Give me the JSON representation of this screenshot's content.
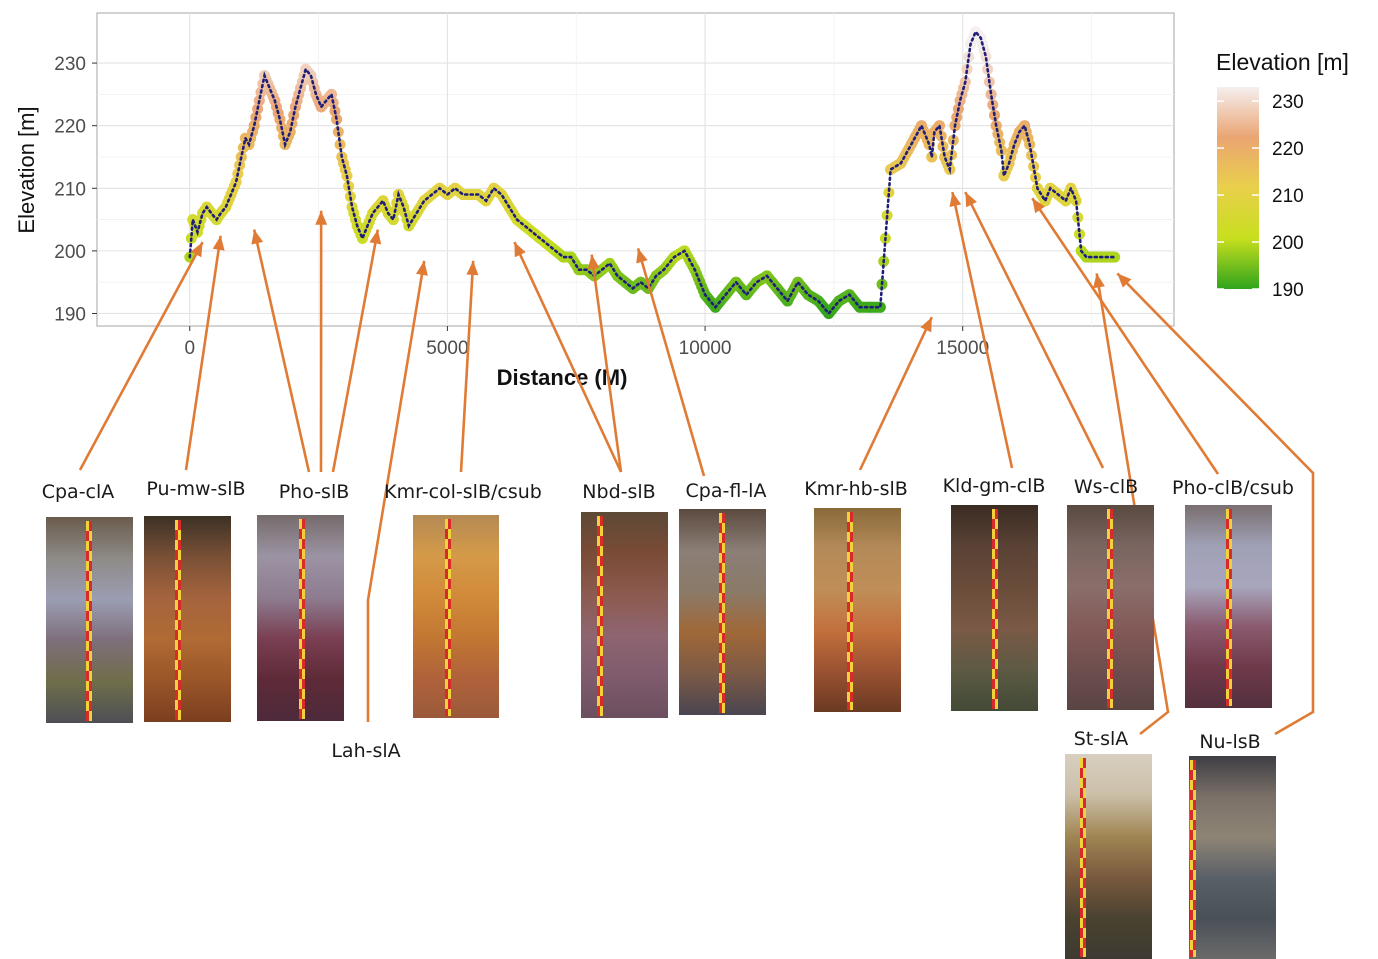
{
  "chart_data": {
    "type": "line",
    "xlabel": "Distance (M)",
    "ylabel": "Elevation [m]",
    "xlim": [
      -1800,
      19100
    ],
    "ylim": [
      188,
      238
    ],
    "x_ticks": [
      0,
      5000,
      10000,
      15000
    ],
    "y_ticks": [
      190,
      200,
      210,
      220,
      230
    ],
    "grid": true,
    "line_style": "dotted",
    "line_color": "#1f1f7a",
    "legend": {
      "title": "Elevation [m]",
      "placement": "right",
      "labels": [
        230,
        220,
        210,
        200,
        190
      ],
      "range": [
        190,
        233
      ],
      "stops": [
        "#2fa41c",
        "#c7df1e",
        "#e9d04a",
        "#eaa572",
        "#f5efef"
      ]
    },
    "series": [
      {
        "x": [
          0,
          60,
          150,
          250,
          330,
          420,
          520,
          600,
          700,
          800,
          900,
          1000,
          1080,
          1150,
          1250,
          1350,
          1450,
          1550,
          1650,
          1750,
          1850,
          1950,
          2050,
          2150,
          2250,
          2350,
          2450,
          2550,
          2650,
          2750,
          2850,
          2950,
          3050,
          3150,
          3250,
          3350,
          3450,
          3550,
          3650,
          3750,
          3850,
          3950,
          4050,
          4150,
          4250,
          4400,
          4550,
          4700,
          4850,
          5000,
          5150,
          5300,
          5450,
          5600,
          5750,
          5900,
          6050,
          6200,
          6350,
          6500,
          6650,
          6800,
          6950,
          7100,
          7250,
          7400,
          7550,
          7700,
          7850,
          8000,
          8150,
          8300,
          8450,
          8600,
          8750,
          8900,
          9050,
          9200,
          9400,
          9600,
          9800,
          10000,
          10200,
          10400,
          10600,
          10800,
          11000,
          11200,
          11400,
          11600,
          11800,
          12000,
          12200,
          12400,
          12600,
          12800,
          13000,
          13200,
          13400,
          13600,
          13800,
          14000,
          14200,
          14350,
          14400,
          14450,
          14550,
          14650,
          14750,
          14850,
          14950,
          15050,
          15150,
          15250,
          15350,
          15450,
          15550,
          15650,
          15750,
          15800,
          15900,
          16000,
          16100,
          16200,
          16300,
          16450,
          16600,
          16700,
          16850,
          17000,
          17100,
          17200,
          17300,
          17400,
          17500,
          17600,
          17700,
          17750,
          17800,
          17850,
          17950
        ],
        "y": [
          199,
          205,
          203,
          206,
          207,
          206,
          205,
          206,
          207,
          209,
          211,
          215,
          218,
          217,
          220,
          224,
          228,
          226,
          224,
          221,
          217,
          219,
          223,
          226,
          229,
          228,
          225,
          223,
          224,
          225,
          221,
          215,
          212,
          207,
          204,
          202,
          204,
          206,
          207,
          208,
          206,
          205,
          209,
          207,
          204,
          206,
          208,
          209,
          210,
          209,
          210,
          209,
          209,
          209,
          208,
          210,
          209,
          207,
          205,
          204,
          203,
          202,
          201,
          200,
          199,
          199,
          197,
          197,
          196,
          197,
          198,
          196,
          195,
          194,
          195,
          194,
          196,
          197,
          199,
          200,
          197,
          193,
          191,
          193,
          195,
          193,
          195,
          196,
          194,
          192,
          195,
          193,
          192,
          190,
          192,
          193,
          191,
          191,
          191,
          213,
          214,
          217,
          220,
          217,
          215,
          219,
          220,
          215,
          213,
          220,
          224,
          227,
          233,
          235,
          234,
          231,
          225,
          220,
          216,
          212,
          214,
          217,
          219,
          220,
          217,
          210,
          208,
          210,
          209,
          208,
          210,
          208,
          200,
          199,
          199,
          199,
          199,
          199,
          199,
          199,
          199
        ],
        "name": ""
      }
    ],
    "sample_sites": [
      {
        "label": "Cpa-clA",
        "x": 250,
        "elev": 203
      },
      {
        "label": "Pu-mw-slB",
        "x": 600,
        "elev": 204
      },
      {
        "label": "Pho-slB",
        "x": 1250,
        "elev": 205
      },
      {
        "label": "Pho-slB",
        "x": 2550,
        "elev": 208
      },
      {
        "label": "Pho-slB",
        "x": 3650,
        "elev": 205
      },
      {
        "label": "Lah-slA",
        "x": 4550,
        "elev": 200
      },
      {
        "label": "Kmr-col-slB/csub",
        "x": 5500,
        "elev": 200
      },
      {
        "label": "Nbd-slB",
        "x": 6300,
        "elev": 203
      },
      {
        "label": "Nbd-slB",
        "x": 7800,
        "elev": 201
      },
      {
        "label": "Cpa-fl-lA",
        "x": 8700,
        "elev": 202
      },
      {
        "label": "Kmr-hb-slB",
        "x": 14400,
        "elev": 191
      },
      {
        "label": "Kld-gm-clB",
        "x": 14800,
        "elev": 211
      },
      {
        "label": "Ws-clB",
        "x": 15050,
        "elev": 211
      },
      {
        "label": "Pho-clB/csub",
        "x": 16350,
        "elev": 210
      },
      {
        "label": "St-slA",
        "x": 17600,
        "elev": 198
      },
      {
        "label": "Nu-lsB",
        "x": 18000,
        "elev": 198
      }
    ]
  },
  "panels": [
    {
      "label": "Cpa-clA"
    },
    {
      "label": "Pu-mw-slB"
    },
    {
      "label": "Pho-slB"
    },
    {
      "label": "Kmr-col-slB/csub"
    },
    {
      "label": "Nbd-slB"
    },
    {
      "label": "Cpa-fl-lA"
    },
    {
      "label": "Kmr-hb-slB"
    },
    {
      "label": "Kld-gm-clB"
    },
    {
      "label": "Ws-clB"
    },
    {
      "label": "Pho-clB/csub"
    },
    {
      "label": "Lah-slA"
    },
    {
      "label": "St-slA"
    },
    {
      "label": "Nu-lsB"
    }
  ]
}
